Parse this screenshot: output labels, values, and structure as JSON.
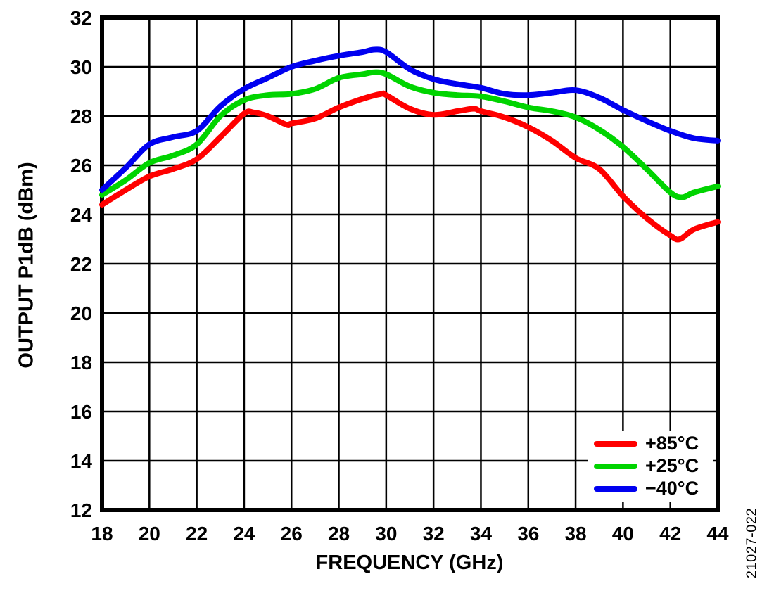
{
  "figure": {
    "watermark": "21027-022",
    "background": "#ffffff"
  },
  "chart_data": {
    "type": "line",
    "title": "",
    "xlabel": "FREQUENCY (GHz)",
    "ylabel": "OUTPUT P1dB (dBm)",
    "xlim": [
      18,
      44
    ],
    "ylim": [
      12,
      32
    ],
    "xticks": [
      18,
      20,
      22,
      24,
      26,
      28,
      30,
      32,
      34,
      36,
      38,
      40,
      42,
      44
    ],
    "yticks": [
      12,
      14,
      16,
      18,
      20,
      22,
      24,
      26,
      28,
      30,
      32
    ],
    "grid": true,
    "grid_color": "#000000",
    "axis_color": "#000000",
    "legend_position": "bottom-right",
    "series": [
      {
        "name": "+85°C",
        "color": "#ff0000",
        "points": [
          [
            18,
            24.4
          ],
          [
            19,
            25.0
          ],
          [
            20,
            25.55
          ],
          [
            21,
            25.85
          ],
          [
            22,
            26.25
          ],
          [
            23,
            27.15
          ],
          [
            24,
            28.1
          ],
          [
            24.4,
            28.15
          ],
          [
            25,
            28.0
          ],
          [
            25.8,
            27.65
          ],
          [
            26,
            27.7
          ],
          [
            27,
            27.9
          ],
          [
            28,
            28.35
          ],
          [
            29,
            28.7
          ],
          [
            29.8,
            28.9
          ],
          [
            30,
            28.85
          ],
          [
            31,
            28.3
          ],
          [
            32,
            28.05
          ],
          [
            33,
            28.2
          ],
          [
            33.7,
            28.3
          ],
          [
            34,
            28.2
          ],
          [
            35,
            27.95
          ],
          [
            36,
            27.55
          ],
          [
            37,
            27.0
          ],
          [
            38,
            26.3
          ],
          [
            39,
            25.85
          ],
          [
            40,
            24.75
          ],
          [
            41,
            23.85
          ],
          [
            42,
            23.15
          ],
          [
            42.4,
            23.0
          ],
          [
            43,
            23.4
          ],
          [
            44,
            23.7
          ]
        ]
      },
      {
        "name": "+25°C",
        "color": "#00d400",
        "points": [
          [
            18,
            24.8
          ],
          [
            19,
            25.4
          ],
          [
            20,
            26.1
          ],
          [
            21,
            26.4
          ],
          [
            22,
            26.85
          ],
          [
            23,
            28.0
          ],
          [
            24,
            28.65
          ],
          [
            25,
            28.85
          ],
          [
            26,
            28.9
          ],
          [
            27,
            29.1
          ],
          [
            28,
            29.55
          ],
          [
            29,
            29.7
          ],
          [
            29.5,
            29.78
          ],
          [
            30,
            29.7
          ],
          [
            31,
            29.2
          ],
          [
            32,
            28.95
          ],
          [
            33,
            28.85
          ],
          [
            34,
            28.8
          ],
          [
            35,
            28.6
          ],
          [
            36,
            28.35
          ],
          [
            37,
            28.2
          ],
          [
            38,
            27.95
          ],
          [
            39,
            27.45
          ],
          [
            40,
            26.75
          ],
          [
            41,
            25.85
          ],
          [
            42,
            24.9
          ],
          [
            42.5,
            24.7
          ],
          [
            43,
            24.9
          ],
          [
            44,
            25.15
          ]
        ]
      },
      {
        "name": "−40°C",
        "color": "#0000f0",
        "points": [
          [
            18,
            25.0
          ],
          [
            19,
            25.9
          ],
          [
            20,
            26.85
          ],
          [
            21,
            27.15
          ],
          [
            22,
            27.4
          ],
          [
            23,
            28.4
          ],
          [
            24,
            29.1
          ],
          [
            25,
            29.55
          ],
          [
            26,
            30.0
          ],
          [
            27,
            30.25
          ],
          [
            28,
            30.45
          ],
          [
            29,
            30.6
          ],
          [
            29.5,
            30.7
          ],
          [
            30,
            30.6
          ],
          [
            31,
            29.9
          ],
          [
            32,
            29.5
          ],
          [
            33,
            29.3
          ],
          [
            34,
            29.15
          ],
          [
            35,
            28.9
          ],
          [
            36,
            28.85
          ],
          [
            37,
            28.95
          ],
          [
            38,
            29.05
          ],
          [
            39,
            28.75
          ],
          [
            40,
            28.25
          ],
          [
            41,
            27.8
          ],
          [
            42,
            27.4
          ],
          [
            43,
            27.1
          ],
          [
            44,
            27.0
          ]
        ]
      }
    ]
  }
}
